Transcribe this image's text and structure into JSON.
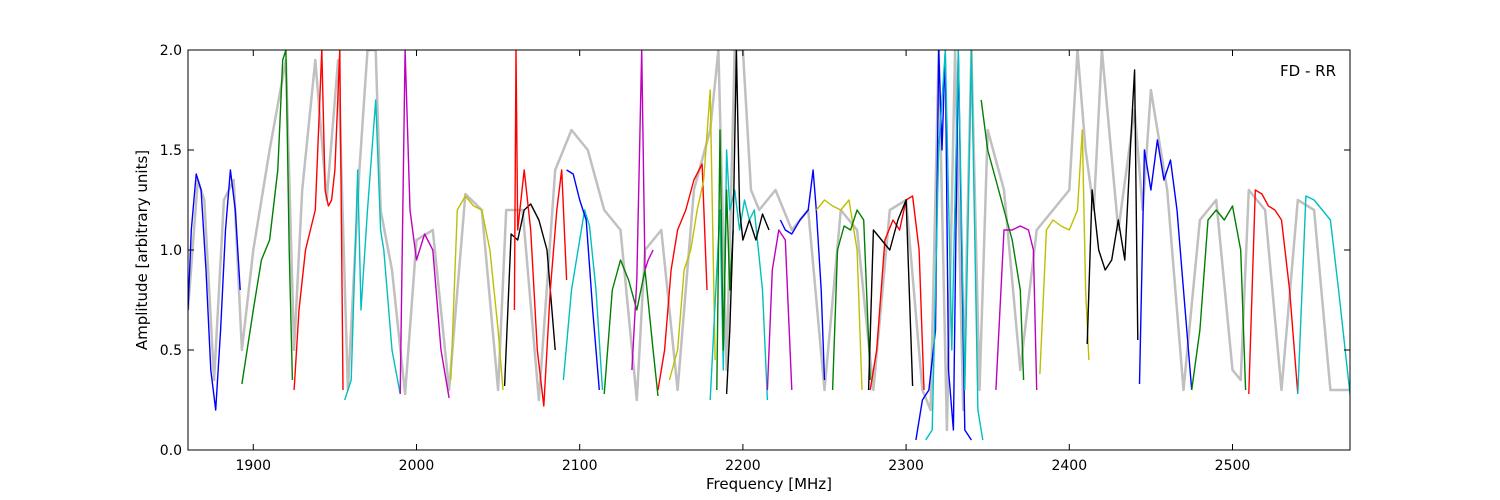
{
  "chart_data": {
    "type": "line",
    "title": "",
    "xlabel": "Frequency [MHz]",
    "ylabel": "Amplitude [arbitrary units]",
    "xlim": [
      1860,
      2572
    ],
    "ylim": [
      0,
      2
    ],
    "x_ticks": [
      1900,
      2000,
      2100,
      2200,
      2300,
      2400,
      2500
    ],
    "x_tick_labels": [
      "1900",
      "2000",
      "2100",
      "2200",
      "2300",
      "2400",
      "2500"
    ],
    "y_ticks": [
      0,
      0.5,
      1,
      1.5,
      2
    ],
    "y_tick_labels": [
      "0.0",
      "0.5",
      "1.0",
      "1.5",
      "2.0"
    ],
    "grid": false,
    "annotation": "FD - RR",
    "annotation_position": "top-right",
    "envelope_color": "#c0c0c0",
    "envelope": {
      "x": [
        1860,
        1866,
        1870,
        1876,
        1882,
        1888,
        1893,
        1900,
        1910,
        1920,
        1925,
        1930,
        1938,
        1945,
        1952,
        1958,
        1965,
        1970,
        1975,
        1978,
        1985,
        1993,
        2000,
        2010,
        2020,
        2030,
        2040,
        2050,
        2055,
        2065,
        2075,
        2085,
        2095,
        2105,
        2115,
        2125,
        2135,
        2140,
        2150,
        2160,
        2170,
        2180,
        2185,
        2190,
        2195,
        2200,
        2205,
        2210,
        2220,
        2230,
        2240,
        2250,
        2260,
        2270,
        2280,
        2290,
        2300,
        2310,
        2315,
        2320,
        2325,
        2330,
        2335,
        2340,
        2345,
        2350,
        2360,
        2370,
        2380,
        2390,
        2400,
        2405,
        2410,
        2415,
        2420,
        2430,
        2440,
        2445,
        2450,
        2460,
        2470,
        2480,
        2490,
        2500,
        2505,
        2510,
        2520,
        2530,
        2540,
        2550,
        2560,
        2572
      ],
      "y": [
        0.7,
        1.35,
        1.25,
        0.35,
        1.25,
        1.35,
        0.5,
        1.0,
        1.5,
        1.95,
        0.5,
        1.3,
        1.95,
        1.25,
        1.95,
        0.3,
        1.4,
        2.0,
        2.0,
        1.2,
        0.9,
        0.28,
        1.05,
        1.1,
        0.3,
        1.28,
        1.2,
        0.3,
        1.2,
        1.2,
        0.25,
        1.4,
        1.6,
        1.5,
        1.2,
        1.1,
        0.25,
        1.0,
        1.1,
        0.3,
        1.3,
        1.6,
        2.0,
        0.4,
        2.0,
        2.0,
        1.3,
        1.2,
        1.3,
        1.1,
        1.2,
        0.3,
        1.2,
        1.1,
        0.3,
        1.2,
        1.25,
        0.3,
        0.2,
        2.0,
        0.1,
        2.0,
        0.2,
        2.0,
        0.3,
        1.6,
        1.3,
        0.4,
        1.1,
        1.2,
        1.3,
        2.0,
        1.5,
        1.2,
        2.0,
        1.1,
        1.7,
        1.2,
        1.8,
        1.3,
        0.3,
        1.15,
        1.25,
        0.4,
        0.35,
        1.3,
        1.2,
        0.3,
        1.25,
        1.2,
        0.3,
        0.3
      ]
    },
    "series": [
      {
        "color": "#0000ff",
        "x": [
          1860,
          1862,
          1865,
          1868,
          1871,
          1874,
          1877,
          1880,
          1883,
          1886,
          1889,
          1892
        ],
        "y": [
          0.7,
          1.1,
          1.38,
          1.3,
          0.9,
          0.4,
          0.2,
          0.6,
          1.1,
          1.4,
          1.2,
          0.8
        ]
      },
      {
        "color": "#008000",
        "x": [
          1893,
          1900,
          1905,
          1910,
          1915,
          1918,
          1920,
          1922,
          1924
        ],
        "y": [
          0.33,
          0.7,
          0.95,
          1.05,
          1.4,
          1.95,
          2.0,
          1.0,
          0.35
        ]
      },
      {
        "color": "#ff0000",
        "x": [
          1925,
          1928,
          1932,
          1938,
          1942,
          1944,
          1946,
          1948,
          1950,
          1953,
          1955
        ],
        "y": [
          0.3,
          0.7,
          1.0,
          1.2,
          2.0,
          1.3,
          1.22,
          1.25,
          1.4,
          2.0,
          0.3
        ]
      },
      {
        "color": "#00bfbf",
        "x": [
          1956,
          1960,
          1964,
          1966,
          1970,
          1975,
          1978,
          1980,
          1985,
          1990
        ],
        "y": [
          0.25,
          0.35,
          1.4,
          0.7,
          1.2,
          1.75,
          1.1,
          1.0,
          0.5,
          0.28
        ]
      },
      {
        "color": "#bf00bf",
        "x": [
          1990,
          1993,
          1996,
          2000,
          2005,
          2010,
          2015,
          2020
        ],
        "y": [
          0.28,
          2.0,
          1.2,
          0.95,
          1.08,
          1.0,
          0.5,
          0.26
        ]
      },
      {
        "color": "#bfbf00",
        "x": [
          2021,
          2025,
          2030,
          2035,
          2040,
          2045,
          2050,
          2053
        ],
        "y": [
          0.35,
          1.2,
          1.27,
          1.22,
          1.2,
          1.0,
          0.6,
          0.3
        ]
      },
      {
        "color": "#000000",
        "x": [
          2054,
          2058,
          2062,
          2066,
          2070,
          2075,
          2080,
          2085
        ],
        "y": [
          0.32,
          1.08,
          1.05,
          1.2,
          1.23,
          1.15,
          1.0,
          0.5
        ]
      },
      {
        "color": "#ff0000",
        "x": [
          2060,
          2061,
          2062,
          2066,
          2070,
          2074,
          2078,
          2082,
          2086,
          2089,
          2092
        ],
        "y": [
          0.7,
          2.0,
          1.1,
          1.4,
          1.1,
          0.5,
          0.22,
          0.8,
          1.2,
          1.4,
          0.85
        ]
      },
      {
        "color": "#00bfbf",
        "x": [
          2090,
          2095,
          2100,
          2103,
          2106,
          2110,
          2114
        ],
        "y": [
          0.35,
          0.8,
          1.05,
          1.2,
          1.12,
          0.8,
          0.3
        ]
      },
      {
        "color": "#0000ff",
        "x": [
          2092,
          2096,
          2100,
          2104,
          2108,
          2112
        ],
        "y": [
          1.4,
          1.38,
          1.25,
          1.15,
          0.7,
          0.3
        ]
      },
      {
        "color": "#008000",
        "x": [
          2115,
          2120,
          2125,
          2130,
          2135,
          2140,
          2145,
          2148
        ],
        "y": [
          0.28,
          0.8,
          0.95,
          0.85,
          0.7,
          0.9,
          0.5,
          0.27
        ]
      },
      {
        "color": "#bf00bf",
        "x": [
          2132,
          2135,
          2138,
          2140,
          2142,
          2145
        ],
        "y": [
          0.4,
          0.85,
          2.0,
          0.9,
          0.95,
          1.0
        ]
      },
      {
        "color": "#ff0000",
        "x": [
          2148,
          2152,
          2156,
          2160,
          2165,
          2170,
          2175,
          2178
        ],
        "y": [
          0.3,
          0.5,
          0.9,
          1.1,
          1.2,
          1.35,
          1.43,
          0.8
        ]
      },
      {
        "color": "#bfbf00",
        "x": [
          2155,
          2160,
          2164,
          2168,
          2172,
          2176,
          2180,
          2183
        ],
        "y": [
          0.35,
          0.5,
          0.9,
          1.0,
          1.2,
          1.35,
          1.8,
          0.45
        ]
      },
      {
        "color": "#00bfbf",
        "x": [
          2180,
          2184,
          2186,
          2188,
          2190,
          2192,
          2195,
          2198,
          2201,
          2204,
          2207,
          2212,
          2215
        ],
        "y": [
          0.25,
          0.9,
          1.2,
          0.4,
          1.5,
          1.2,
          1.3,
          1.1,
          1.25,
          1.15,
          1.2,
          0.8,
          0.25
        ]
      },
      {
        "color": "#008000",
        "x": [
          2184,
          2186,
          2188,
          2190,
          2192,
          2194
        ],
        "y": [
          0.3,
          1.6,
          0.5,
          1.3,
          0.8,
          1.1
        ]
      },
      {
        "color": "#000000",
        "x": [
          2190,
          2192,
          2194,
          2196,
          2198,
          2200,
          2204,
          2208,
          2212,
          2216
        ],
        "y": [
          0.28,
          0.6,
          1.1,
          2.0,
          1.2,
          1.05,
          1.15,
          1.05,
          1.18,
          1.1
        ]
      },
      {
        "color": "#bf00bf",
        "x": [
          2215,
          2218,
          2222,
          2226,
          2230
        ],
        "y": [
          0.3,
          0.9,
          1.1,
          1.05,
          0.3
        ]
      },
      {
        "color": "#0000ff",
        "x": [
          2223,
          2226,
          2230,
          2235,
          2240,
          2243,
          2245,
          2248,
          2250
        ],
        "y": [
          1.15,
          1.1,
          1.08,
          1.15,
          1.2,
          1.4,
          1.2,
          0.8,
          0.35
        ]
      },
      {
        "color": "#bfbf00",
        "x": [
          2245,
          2250,
          2255,
          2260,
          2265,
          2270,
          2273
        ],
        "y": [
          1.2,
          1.25,
          1.22,
          1.2,
          1.25,
          1.0,
          0.3
        ]
      },
      {
        "color": "#008000",
        "x": [
          2255,
          2258,
          2262,
          2266,
          2270,
          2274,
          2278
        ],
        "y": [
          0.3,
          1.0,
          1.12,
          1.1,
          1.2,
          1.15,
          0.35
        ]
      },
      {
        "color": "#ff0000",
        "x": [
          2278,
          2282,
          2287,
          2292,
          2296,
          2300,
          2304,
          2308,
          2311
        ],
        "y": [
          0.3,
          0.5,
          1.05,
          1.15,
          1.1,
          1.25,
          1.27,
          1.0,
          0.3
        ]
      },
      {
        "color": "#000000",
        "x": [
          2277,
          2280,
          2285,
          2290,
          2295,
          2300,
          2304
        ],
        "y": [
          0.3,
          1.1,
          1.05,
          1.0,
          1.15,
          1.25,
          0.32
        ]
      },
      {
        "color": "#0000ff",
        "x": [
          2306,
          2310,
          2314,
          2318,
          2320,
          2322,
          2324,
          2326,
          2329,
          2332,
          2336,
          2340
        ],
        "y": [
          0.05,
          0.25,
          0.3,
          0.6,
          2.0,
          1.5,
          2.0,
          0.4,
          0.1,
          2.0,
          0.1,
          0.05
        ]
      },
      {
        "color": "#00bfbf",
        "x": [
          2312,
          2316,
          2320,
          2324,
          2328,
          2332,
          2336,
          2340,
          2344,
          2347
        ],
        "y": [
          0.05,
          0.1,
          1.5,
          2.0,
          0.5,
          2.0,
          0.3,
          2.0,
          0.2,
          0.05
        ]
      },
      {
        "color": "#008000",
        "x": [
          2346,
          2350,
          2355,
          2360,
          2365,
          2370,
          2372
        ],
        "y": [
          1.75,
          1.5,
          1.35,
          1.2,
          1.05,
          0.8,
          0.35
        ]
      },
      {
        "color": "#bf00bf",
        "x": [
          2355,
          2360,
          2365,
          2370,
          2375,
          2378,
          2380
        ],
        "y": [
          0.3,
          1.1,
          1.1,
          1.12,
          1.1,
          1.0,
          0.3
        ]
      },
      {
        "color": "#bfbf00",
        "x": [
          2382,
          2386,
          2390,
          2395,
          2400,
          2405,
          2408,
          2410,
          2412
        ],
        "y": [
          0.38,
          1.1,
          1.15,
          1.12,
          1.1,
          1.2,
          1.6,
          0.8,
          0.45
        ]
      },
      {
        "color": "#000000",
        "x": [
          2411,
          2414,
          2418,
          2422,
          2426,
          2430,
          2434,
          2438,
          2440,
          2442
        ],
        "y": [
          0.53,
          1.3,
          1.0,
          0.9,
          0.95,
          1.15,
          0.95,
          1.6,
          1.9,
          0.55
        ]
      },
      {
        "color": "#0000ff",
        "x": [
          2443,
          2446,
          2450,
          2454,
          2458,
          2462,
          2466,
          2470,
          2475
        ],
        "y": [
          0.33,
          1.5,
          1.3,
          1.55,
          1.35,
          1.45,
          1.2,
          0.8,
          0.3
        ]
      },
      {
        "color": "#008000",
        "x": [
          2475,
          2480,
          2485,
          2490,
          2495,
          2500,
          2505,
          2508
        ],
        "y": [
          0.3,
          0.6,
          1.15,
          1.2,
          1.15,
          1.22,
          1.0,
          0.3
        ]
      },
      {
        "color": "#ff0000",
        "x": [
          2510,
          2514,
          2518,
          2522,
          2526,
          2530,
          2535,
          2540
        ],
        "y": [
          0.28,
          1.3,
          1.28,
          1.22,
          1.2,
          1.15,
          0.8,
          0.28
        ]
      },
      {
        "color": "#00bfbf",
        "x": [
          2540,
          2545,
          2550,
          2555,
          2560,
          2565,
          2572
        ],
        "y": [
          0.28,
          1.27,
          1.25,
          1.2,
          1.15,
          0.8,
          0.28
        ]
      }
    ]
  }
}
